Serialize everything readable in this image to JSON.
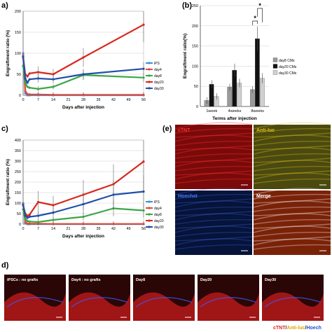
{
  "panels": {
    "a": {
      "letter": "a)"
    },
    "b": {
      "letter": "(b)"
    },
    "c": {
      "letter": "c)"
    },
    "d": {
      "letter": "d)"
    },
    "e": {
      "letter": "(e)"
    }
  },
  "chart_data": [
    {
      "id": "a",
      "type": "line",
      "ylabel": "Engraftment ratio (%)",
      "xlabel": "Days after injection",
      "ylim": [
        0,
        200
      ],
      "yticks": [
        0,
        50,
        100,
        150,
        200
      ],
      "xticks": [
        0,
        7,
        14,
        21,
        28,
        35,
        42,
        49,
        56
      ],
      "grid": true,
      "legend_position": "right",
      "series": [
        {
          "name": "iPS",
          "color": "#3a8fd8",
          "x": [
            0,
            1,
            2,
            3,
            7,
            14,
            28,
            56
          ],
          "y": [
            100,
            5,
            0,
            0,
            0,
            0,
            0,
            0
          ]
        },
        {
          "name": "day4",
          "color": "#e04a3a",
          "x": [
            0,
            1,
            2,
            3,
            7,
            14,
            28,
            56
          ],
          "y": [
            95,
            10,
            3,
            2,
            2,
            1,
            1,
            1
          ]
        },
        {
          "name": "day8",
          "color": "#3aa648",
          "x": [
            0,
            1,
            2,
            3,
            7,
            14,
            28,
            56
          ],
          "y": [
            70,
            30,
            20,
            18,
            15,
            20,
            48,
            42
          ]
        },
        {
          "name": "day20",
          "color": "#d8281e",
          "x": [
            0,
            1,
            2,
            3,
            7,
            14,
            28,
            56
          ],
          "y": [
            90,
            50,
            45,
            52,
            55,
            50,
            90,
            168
          ]
        },
        {
          "name": "day30",
          "color": "#1f4fa8",
          "x": [
            0,
            1,
            2,
            3,
            7,
            14,
            28,
            56
          ],
          "y": [
            92,
            40,
            30,
            38,
            40,
            38,
            50,
            63
          ]
        }
      ]
    },
    {
      "id": "b",
      "type": "bar",
      "ylabel": "Engraftment ratio(%)",
      "xlabel": "Terms after injection",
      "ylim": [
        0,
        250
      ],
      "yticks": [
        0,
        50,
        100,
        150,
        200,
        250
      ],
      "categories": [
        "1week",
        "4weeks",
        "8weeks"
      ],
      "grid": true,
      "legend_position": "right",
      "series": [
        {
          "name": "day8 CMs",
          "color": "#9a9a9a",
          "values": [
            15,
            48,
            42
          ]
        },
        {
          "name": "day20 CMs",
          "color": "#111111",
          "values": [
            55,
            90,
            168
          ]
        },
        {
          "name": "day30 CMs",
          "color": "#d0d0d0",
          "values": [
            25,
            58,
            70
          ]
        }
      ],
      "significance": [
        "*",
        "*"
      ]
    },
    {
      "id": "c",
      "type": "line",
      "ylabel": "Engraftment ratio (%)",
      "xlabel": "Days after injection",
      "ylim": [
        0,
        400
      ],
      "yticks": [
        0,
        50,
        100,
        150,
        200,
        250,
        300,
        350,
        400
      ],
      "xticks": [
        0,
        7,
        14,
        21,
        28,
        35,
        42,
        49,
        56
      ],
      "grid": true,
      "legend_position": "right",
      "series": [
        {
          "name": "iPS",
          "color": "#3a8fd8",
          "x": [
            0,
            1,
            2,
            3,
            7,
            14,
            28,
            42,
            56
          ],
          "y": [
            100,
            5,
            0,
            0,
            0,
            0,
            0,
            0,
            0
          ]
        },
        {
          "name": "day4",
          "color": "#e04a3a",
          "x": [
            0,
            1,
            2,
            3,
            7,
            14,
            28,
            42,
            56
          ],
          "y": [
            95,
            10,
            3,
            2,
            2,
            1,
            1,
            1,
            1
          ]
        },
        {
          "name": "day8",
          "color": "#3aa648",
          "x": [
            0,
            1,
            2,
            3,
            7,
            14,
            28,
            42,
            56
          ],
          "y": [
            70,
            25,
            15,
            12,
            10,
            20,
            35,
            75,
            65
          ]
        },
        {
          "name": "day20",
          "color": "#d8281e",
          "x": [
            0,
            1,
            2,
            3,
            7,
            14,
            28,
            42,
            56
          ],
          "y": [
            90,
            50,
            40,
            45,
            105,
            90,
            140,
            190,
            298
          ]
        },
        {
          "name": "day30",
          "color": "#1f4fa8",
          "x": [
            0,
            1,
            2,
            3,
            7,
            14,
            28,
            42,
            56
          ],
          "y": [
            92,
            40,
            30,
            35,
            40,
            55,
            95,
            140,
            155
          ]
        }
      ]
    }
  ],
  "micrographs_e": [
    {
      "label": "cTNT",
      "color": "#ff3030",
      "bg": "#7a0a0a"
    },
    {
      "label": "Anti-luc",
      "color": "#e6c21a",
      "bg": "#4a4a10"
    },
    {
      "label": "Hoechst",
      "color": "#4a7cff",
      "bg": "#06133a"
    },
    {
      "label": "Merge",
      "color": "#ffffff",
      "bg": "#7a2208"
    }
  ],
  "micrographs_d": [
    {
      "label": "iPSCs : no grafts"
    },
    {
      "label": "Day4 : no grafts"
    },
    {
      "label": "Day8"
    },
    {
      "label": "Day20"
    },
    {
      "label": "Day30"
    }
  ],
  "stain_legend": {
    "part1": "cTNT",
    "sep1": "/",
    "part2": "Anti-luc",
    "sep2": "/",
    "part3": "Hoech"
  }
}
